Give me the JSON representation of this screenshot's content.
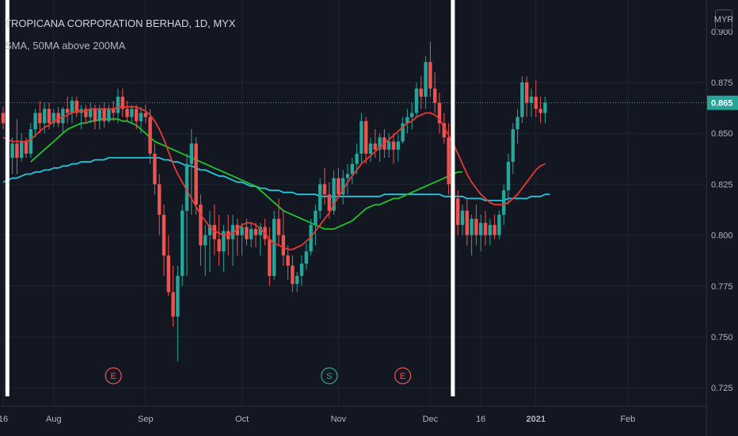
{
  "header": {
    "title": "TROPICANA CORPORATION BERHAD, 1D, MYX",
    "indicator": "SMA, 50MA above 200MA",
    "currency_button": "MYR"
  },
  "colors": {
    "background": "#131722",
    "up": "#26a69a",
    "down": "#ef5350",
    "ma_short": "#e53935",
    "ma_50": "#22c22b",
    "ma_200": "#26c6da",
    "marker": "#ffffff",
    "last_price": "#26a69a"
  },
  "chart_data": {
    "type": "candlestick",
    "ylim": [
      0.72,
      0.9
    ],
    "y_ticks": [
      0.725,
      0.75,
      0.775,
      0.8,
      0.825,
      0.85,
      0.875
    ],
    "y_tick_labels": [
      "0.725",
      "0.750",
      "0.775",
      "0.800",
      "0.825",
      "0.850",
      "0.875"
    ],
    "top_partial_tick": "0.900",
    "last_price": 0.865,
    "last_price_label": "0.865",
    "x_labels": [
      {
        "label": "16",
        "bar": 0
      },
      {
        "label": "Aug",
        "bar": 11
      },
      {
        "label": "Sep",
        "bar": 31
      },
      {
        "label": "Oct",
        "bar": 52
      },
      {
        "label": "Nov",
        "bar": 73
      },
      {
        "label": "Dec",
        "bar": 93
      },
      {
        "label": "16",
        "bar": 104
      },
      {
        "label": "2021",
        "bar": 116
      },
      {
        "label": "Feb",
        "bar": 136
      }
    ],
    "vertical_markers": [
      1,
      98
    ],
    "events": [
      {
        "letter": "E",
        "bar": 24,
        "type": "earnings"
      },
      {
        "letter": "S",
        "bar": 71,
        "type": "split"
      },
      {
        "letter": "E",
        "bar": 87,
        "type": "earnings"
      }
    ],
    "ohlc": [
      [
        0.86,
        0.863,
        0.852,
        0.855
      ],
      [
        0.853,
        0.856,
        0.835,
        0.845
      ],
      [
        0.838,
        0.848,
        0.83,
        0.845
      ],
      [
        0.845,
        0.857,
        0.83,
        0.838
      ],
      [
        0.838,
        0.85,
        0.836,
        0.846
      ],
      [
        0.846,
        0.848,
        0.838,
        0.84
      ],
      [
        0.84,
        0.855,
        0.838,
        0.852
      ],
      [
        0.852,
        0.862,
        0.848,
        0.86
      ],
      [
        0.86,
        0.866,
        0.85,
        0.855
      ],
      [
        0.855,
        0.865,
        0.85,
        0.862
      ],
      [
        0.862,
        0.865,
        0.852,
        0.855
      ],
      [
        0.855,
        0.862,
        0.853,
        0.86
      ],
      [
        0.86,
        0.863,
        0.853,
        0.855
      ],
      [
        0.855,
        0.863,
        0.85,
        0.862
      ],
      [
        0.862,
        0.868,
        0.855,
        0.86
      ],
      [
        0.86,
        0.868,
        0.855,
        0.866
      ],
      [
        0.866,
        0.868,
        0.858,
        0.86
      ],
      [
        0.86,
        0.864,
        0.852,
        0.862
      ],
      [
        0.862,
        0.864,
        0.855,
        0.858
      ],
      [
        0.858,
        0.865,
        0.855,
        0.862
      ],
      [
        0.862,
        0.864,
        0.852,
        0.856
      ],
      [
        0.856,
        0.864,
        0.852,
        0.862
      ],
      [
        0.862,
        0.865,
        0.853,
        0.856
      ],
      [
        0.856,
        0.864,
        0.855,
        0.862
      ],
      [
        0.862,
        0.866,
        0.856,
        0.86
      ],
      [
        0.86,
        0.872,
        0.855,
        0.868
      ],
      [
        0.868,
        0.872,
        0.858,
        0.862
      ],
      [
        0.862,
        0.866,
        0.856,
        0.858
      ],
      [
        0.858,
        0.864,
        0.855,
        0.862
      ],
      [
        0.862,
        0.864,
        0.852,
        0.856
      ],
      [
        0.856,
        0.863,
        0.85,
        0.86
      ],
      [
        0.86,
        0.864,
        0.855,
        0.858
      ],
      [
        0.858,
        0.862,
        0.835,
        0.84
      ],
      [
        0.84,
        0.845,
        0.82,
        0.825
      ],
      [
        0.825,
        0.83,
        0.8,
        0.81
      ],
      [
        0.81,
        0.815,
        0.78,
        0.79
      ],
      [
        0.79,
        0.8,
        0.77,
        0.772
      ],
      [
        0.772,
        0.785,
        0.755,
        0.76
      ],
      [
        0.76,
        0.785,
        0.738,
        0.78
      ],
      [
        0.78,
        0.815,
        0.775,
        0.812
      ],
      [
        0.812,
        0.84,
        0.78,
        0.835
      ],
      [
        0.835,
        0.852,
        0.81,
        0.845
      ],
      [
        0.845,
        0.848,
        0.81,
        0.815
      ],
      [
        0.815,
        0.82,
        0.785,
        0.795
      ],
      [
        0.795,
        0.805,
        0.78,
        0.8
      ],
      [
        0.8,
        0.812,
        0.782,
        0.805
      ],
      [
        0.805,
        0.815,
        0.79,
        0.798
      ],
      [
        0.798,
        0.81,
        0.785,
        0.792
      ],
      [
        0.792,
        0.805,
        0.782,
        0.802
      ],
      [
        0.802,
        0.81,
        0.79,
        0.798
      ],
      [
        0.798,
        0.81,
        0.785,
        0.805
      ],
      [
        0.805,
        0.808,
        0.79,
        0.8
      ],
      [
        0.8,
        0.806,
        0.79,
        0.804
      ],
      [
        0.804,
        0.808,
        0.795,
        0.798
      ],
      [
        0.798,
        0.806,
        0.794,
        0.803
      ],
      [
        0.803,
        0.806,
        0.794,
        0.8
      ],
      [
        0.8,
        0.806,
        0.79,
        0.804
      ],
      [
        0.804,
        0.808,
        0.795,
        0.798
      ],
      [
        0.798,
        0.804,
        0.775,
        0.78
      ],
      [
        0.78,
        0.812,
        0.778,
        0.808
      ],
      [
        0.808,
        0.818,
        0.795,
        0.8
      ],
      [
        0.8,
        0.812,
        0.785,
        0.79
      ],
      [
        0.79,
        0.795,
        0.778,
        0.785
      ],
      [
        0.785,
        0.79,
        0.772,
        0.776
      ],
      [
        0.776,
        0.782,
        0.772,
        0.78
      ],
      [
        0.78,
        0.79,
        0.775,
        0.786
      ],
      [
        0.786,
        0.796,
        0.783,
        0.792
      ],
      [
        0.792,
        0.808,
        0.79,
        0.805
      ],
      [
        0.805,
        0.815,
        0.795,
        0.812
      ],
      [
        0.812,
        0.828,
        0.808,
        0.825
      ],
      [
        0.825,
        0.833,
        0.815,
        0.82
      ],
      [
        0.82,
        0.826,
        0.808,
        0.812
      ],
      [
        0.812,
        0.832,
        0.81,
        0.828
      ],
      [
        0.828,
        0.833,
        0.818,
        0.82
      ],
      [
        0.82,
        0.832,
        0.815,
        0.828
      ],
      [
        0.828,
        0.835,
        0.82,
        0.83
      ],
      [
        0.83,
        0.838,
        0.825,
        0.835
      ],
      [
        0.835,
        0.845,
        0.83,
        0.84
      ],
      [
        0.84,
        0.86,
        0.835,
        0.856
      ],
      [
        0.856,
        0.858,
        0.835,
        0.84
      ],
      [
        0.84,
        0.848,
        0.836,
        0.845
      ],
      [
        0.845,
        0.852,
        0.838,
        0.842
      ],
      [
        0.842,
        0.85,
        0.836,
        0.848
      ],
      [
        0.848,
        0.852,
        0.838,
        0.842
      ],
      [
        0.842,
        0.85,
        0.838,
        0.846
      ],
      [
        0.846,
        0.85,
        0.835,
        0.842
      ],
      [
        0.842,
        0.85,
        0.836,
        0.846
      ],
      [
        0.846,
        0.858,
        0.845,
        0.855
      ],
      [
        0.855,
        0.862,
        0.85,
        0.858
      ],
      [
        0.858,
        0.865,
        0.852,
        0.86
      ],
      [
        0.86,
        0.875,
        0.858,
        0.872
      ],
      [
        0.872,
        0.878,
        0.862,
        0.868
      ],
      [
        0.868,
        0.888,
        0.862,
        0.885
      ],
      [
        0.885,
        0.895,
        0.868,
        0.872
      ],
      [
        0.872,
        0.88,
        0.86,
        0.865
      ],
      [
        0.865,
        0.87,
        0.85,
        0.855
      ],
      [
        0.855,
        0.86,
        0.845,
        0.848
      ],
      [
        0.848,
        0.855,
        0.82,
        0.825
      ],
      [
        0.825,
        0.835,
        0.815,
        0.818
      ],
      [
        0.818,
        0.822,
        0.8,
        0.805
      ],
      [
        0.805,
        0.815,
        0.8,
        0.812
      ],
      [
        0.812,
        0.818,
        0.795,
        0.8
      ],
      [
        0.8,
        0.81,
        0.79,
        0.808
      ],
      [
        0.808,
        0.815,
        0.795,
        0.8
      ],
      [
        0.8,
        0.81,
        0.792,
        0.806
      ],
      [
        0.806,
        0.812,
        0.795,
        0.8
      ],
      [
        0.8,
        0.808,
        0.795,
        0.805
      ],
      [
        0.805,
        0.81,
        0.798,
        0.8
      ],
      [
        0.8,
        0.812,
        0.798,
        0.81
      ],
      [
        0.81,
        0.825,
        0.805,
        0.822
      ],
      [
        0.822,
        0.84,
        0.815,
        0.836
      ],
      [
        0.836,
        0.855,
        0.83,
        0.852
      ],
      [
        0.852,
        0.862,
        0.845,
        0.858
      ],
      [
        0.858,
        0.878,
        0.855,
        0.875
      ],
      [
        0.875,
        0.878,
        0.858,
        0.865
      ],
      [
        0.865,
        0.872,
        0.858,
        0.868
      ],
      [
        0.868,
        0.876,
        0.858,
        0.862
      ],
      [
        0.862,
        0.868,
        0.855,
        0.86
      ],
      [
        0.86,
        0.868,
        0.855,
        0.865
      ]
    ],
    "ma_short": [
      0.848,
      0.847,
      0.846,
      0.846,
      0.846,
      0.846,
      0.847,
      0.849,
      0.851,
      0.853,
      0.854,
      0.856,
      0.857,
      0.858,
      0.859,
      0.86,
      0.861,
      0.861,
      0.861,
      0.862,
      0.862,
      0.862,
      0.862,
      0.862,
      0.862,
      0.863,
      0.863,
      0.863,
      0.863,
      0.863,
      0.862,
      0.861,
      0.859,
      0.856,
      0.852,
      0.847,
      0.841,
      0.835,
      0.83,
      0.826,
      0.822,
      0.818,
      0.814,
      0.81,
      0.807,
      0.804,
      0.802,
      0.801,
      0.8,
      0.8,
      0.801,
      0.803,
      0.805,
      0.806,
      0.806,
      0.805,
      0.803,
      0.801,
      0.798,
      0.796,
      0.795,
      0.794,
      0.793,
      0.793,
      0.794,
      0.795,
      0.797,
      0.799,
      0.802,
      0.805,
      0.808,
      0.811,
      0.815,
      0.819,
      0.822,
      0.826,
      0.829,
      0.832,
      0.835,
      0.837,
      0.839,
      0.841,
      0.843,
      0.845,
      0.847,
      0.849,
      0.851,
      0.853,
      0.855,
      0.856,
      0.858,
      0.859,
      0.86,
      0.86,
      0.859,
      0.857,
      0.853,
      0.849,
      0.845,
      0.84,
      0.835,
      0.83,
      0.826,
      0.823,
      0.82,
      0.818,
      0.816,
      0.815,
      0.815,
      0.815,
      0.816,
      0.818,
      0.82,
      0.823,
      0.826,
      0.829,
      0.832,
      0.834,
      0.835
    ],
    "ma_50": [
      0.836,
      0.838,
      0.84,
      0.842,
      0.844,
      0.846,
      0.848,
      0.85,
      0.852,
      0.853,
      0.854,
      0.855,
      0.855,
      0.856,
      0.856,
      0.857,
      0.857,
      0.857,
      0.857,
      0.857,
      0.856,
      0.856,
      0.855,
      0.854,
      0.852,
      0.85,
      0.848,
      0.846,
      0.845,
      0.844,
      0.843,
      0.842,
      0.841,
      0.84,
      0.839,
      0.838,
      0.837,
      0.836,
      0.835,
      0.834,
      0.833,
      0.832,
      0.831,
      0.83,
      0.829,
      0.828,
      0.827,
      0.826,
      0.825,
      0.824,
      0.822,
      0.82,
      0.818,
      0.816,
      0.814,
      0.812,
      0.811,
      0.81,
      0.809,
      0.808,
      0.807,
      0.806,
      0.805,
      0.804,
      0.803,
      0.803,
      0.803,
      0.804,
      0.805,
      0.806,
      0.807,
      0.809,
      0.811,
      0.813,
      0.814,
      0.815,
      0.815,
      0.816,
      0.817,
      0.818,
      0.818,
      0.819,
      0.82,
      0.821,
      0.822,
      0.823,
      0.824,
      0.825,
      0.826,
      0.827,
      0.828,
      0.829,
      0.83,
      0.831,
      0.831
    ],
    "ma_50_start": 6,
    "ma_200": [
      0.826,
      0.827,
      0.828,
      0.828,
      0.829,
      0.83,
      0.83,
      0.831,
      0.831,
      0.832,
      0.832,
      0.833,
      0.833,
      0.834,
      0.834,
      0.835,
      0.835,
      0.836,
      0.836,
      0.836,
      0.837,
      0.837,
      0.837,
      0.838,
      0.838,
      0.838,
      0.838,
      0.838,
      0.838,
      0.838,
      0.838,
      0.838,
      0.838,
      0.838,
      0.838,
      0.837,
      0.837,
      0.836,
      0.836,
      0.835,
      0.834,
      0.834,
      0.833,
      0.832,
      0.832,
      0.831,
      0.83,
      0.829,
      0.829,
      0.828,
      0.827,
      0.826,
      0.826,
      0.825,
      0.824,
      0.824,
      0.823,
      0.823,
      0.822,
      0.822,
      0.822,
      0.821,
      0.821,
      0.821,
      0.82,
      0.82,
      0.82,
      0.82,
      0.82,
      0.819,
      0.819,
      0.819,
      0.819,
      0.819,
      0.819,
      0.819,
      0.819,
      0.819,
      0.819,
      0.819,
      0.819,
      0.819,
      0.819,
      0.82,
      0.82,
      0.82,
      0.82,
      0.82,
      0.82,
      0.82,
      0.82,
      0.82,
      0.82,
      0.82,
      0.82,
      0.82,
      0.819,
      0.819,
      0.819,
      0.819,
      0.819,
      0.818,
      0.818,
      0.818,
      0.818,
      0.817,
      0.817,
      0.817,
      0.817,
      0.817,
      0.818,
      0.818,
      0.818,
      0.818,
      0.818,
      0.819,
      0.819,
      0.819,
      0.82,
      0.82
    ]
  }
}
